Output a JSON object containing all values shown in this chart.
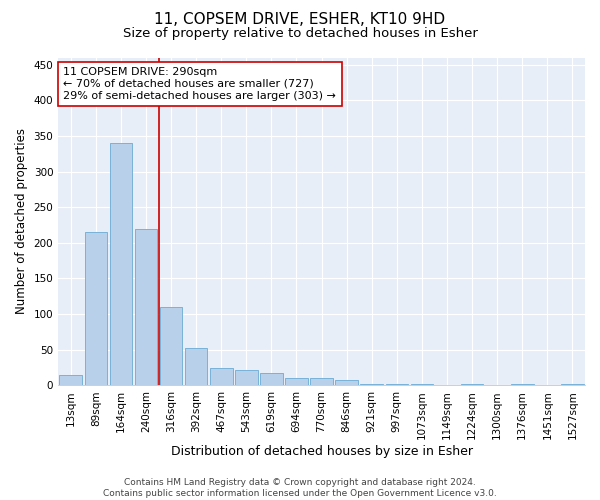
{
  "title1": "11, COPSEM DRIVE, ESHER, KT10 9HD",
  "title2": "Size of property relative to detached houses in Esher",
  "xlabel": "Distribution of detached houses by size in Esher",
  "ylabel": "Number of detached properties",
  "categories": [
    "13sqm",
    "89sqm",
    "164sqm",
    "240sqm",
    "316sqm",
    "392sqm",
    "467sqm",
    "543sqm",
    "619sqm",
    "694sqm",
    "770sqm",
    "846sqm",
    "921sqm",
    "997sqm",
    "1073sqm",
    "1149sqm",
    "1224sqm",
    "1300sqm",
    "1376sqm",
    "1451sqm",
    "1527sqm"
  ],
  "values": [
    15,
    215,
    340,
    220,
    110,
    53,
    25,
    22,
    18,
    10,
    10,
    7,
    2,
    2,
    2,
    0,
    2,
    0,
    2,
    0,
    2
  ],
  "bar_color": "#b8d0ea",
  "bar_edge_color": "#6aaad4",
  "vline_color": "#cc0000",
  "vline_index": 3.5,
  "annotation_text": "11 COPSEM DRIVE: 290sqm\n← 70% of detached houses are smaller (727)\n29% of semi-detached houses are larger (303) →",
  "annotation_box_color": "#ffffff",
  "annotation_box_edge": "#cc0000",
  "ylim": [
    0,
    460
  ],
  "yticks": [
    0,
    50,
    100,
    150,
    200,
    250,
    300,
    350,
    400,
    450
  ],
  "footer": "Contains HM Land Registry data © Crown copyright and database right 2024.\nContains public sector information licensed under the Open Government Licence v3.0.",
  "title1_fontsize": 11,
  "title2_fontsize": 9.5,
  "xlabel_fontsize": 9,
  "ylabel_fontsize": 8.5,
  "tick_fontsize": 7.5,
  "annotation_fontsize": 8,
  "footer_fontsize": 6.5,
  "bg_color": "#e8eef7"
}
